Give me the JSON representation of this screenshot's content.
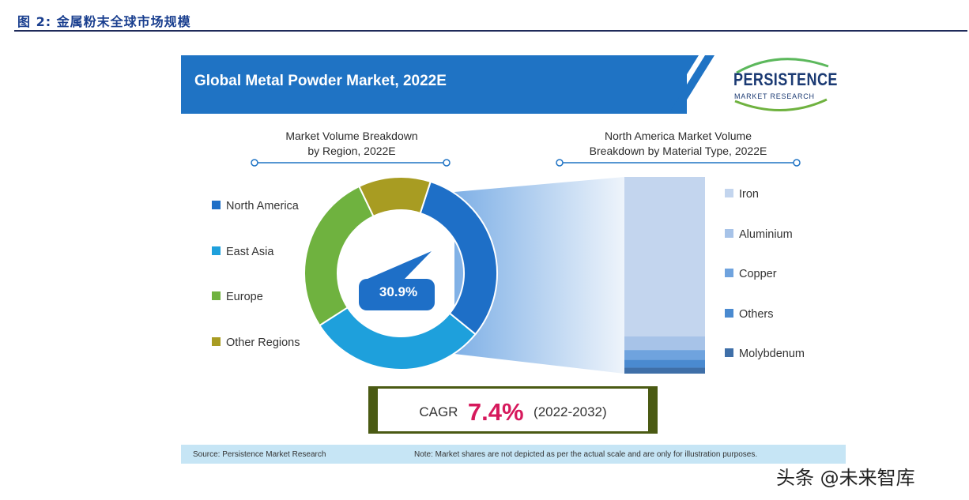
{
  "figure": {
    "caption": "图 2: 金属粉末全球市场规模"
  },
  "header": {
    "title": "Global Metal Powder Market, 2022E",
    "logo_main": "PERSISTENCE",
    "logo_sub": "MARKET RESEARCH"
  },
  "colors": {
    "banner": "#1f73c4",
    "north_america": "#1e6fc7",
    "east_asia": "#1ea0dc",
    "europe": "#6fb23f",
    "other_regions": "#a89c22",
    "cagr_value": "#d6195c"
  },
  "chart_data": [
    {
      "type": "pie",
      "title": "Market Volume Breakdown by Region, 2022E",
      "title_lines": [
        "Market Volume Breakdown",
        "by Region, 2022E"
      ],
      "categories": [
        "North America",
        "East Asia",
        "Europe",
        "Other Regions"
      ],
      "values": [
        30.9,
        30.0,
        27.0,
        12.1
      ],
      "colors": [
        "#1e6fc7",
        "#1ea0dc",
        "#6fb23f",
        "#a89c22"
      ],
      "data_label": "30.9%",
      "legend": "left"
    },
    {
      "type": "bar",
      "stacked": true,
      "title": "North America Market Volume Breakdown by Material Type, 2022E",
      "title_lines": [
        "North America Market Volume",
        "Breakdown by Material Type, 2022E"
      ],
      "categories": [
        "Iron",
        "Aluminium",
        "Copper",
        "Others",
        "Molybdenum"
      ],
      "values": [
        81,
        7,
        5,
        4,
        3
      ],
      "colors": [
        "#c3d5ee",
        "#a7c3e8",
        "#6fa3de",
        "#4a8ad0",
        "#3f6fa8"
      ],
      "legend": "right"
    }
  ],
  "cagr": {
    "label": "CAGR",
    "value": "7.4%",
    "period": "(2022-2032)"
  },
  "footer": {
    "source": "Source: Persistence Market Research",
    "note": "Note: Market shares are not depicted as per the actual scale and are only for illustration purposes."
  },
  "watermark": "头条 @未来智库"
}
